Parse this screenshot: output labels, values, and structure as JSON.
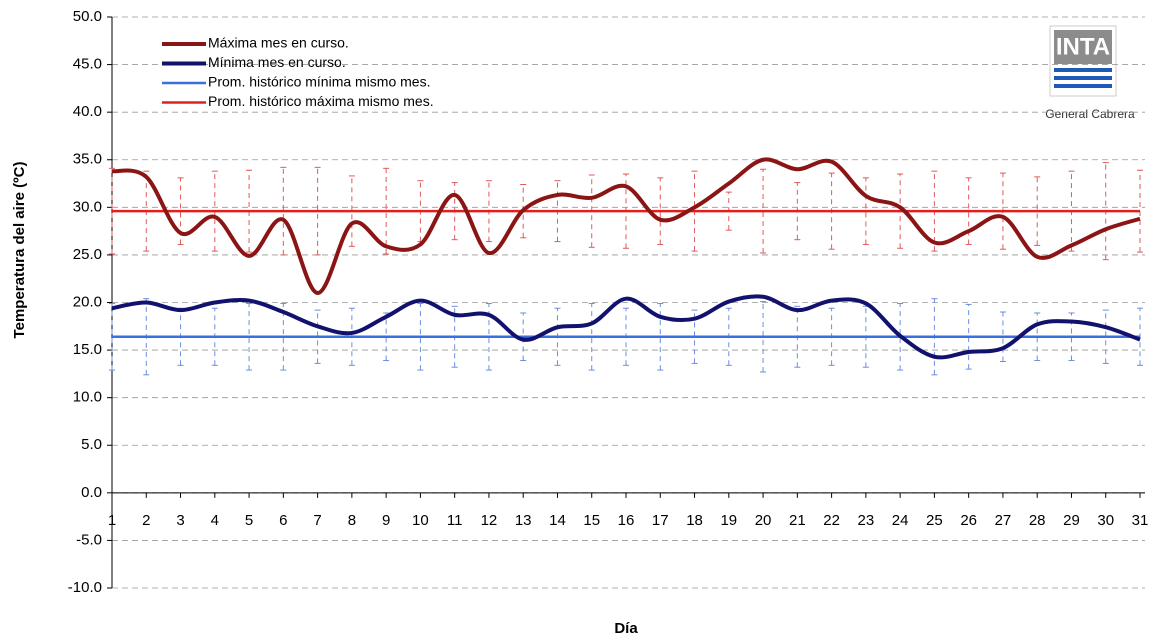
{
  "chart_data": {
    "type": "line",
    "y_label": "Temperatura del aire (ºC)",
    "x_label": "Día",
    "logo": {
      "title": "INTA",
      "subtitle": "General Cabrera"
    },
    "categories": [
      "1",
      "2",
      "3",
      "4",
      "5",
      "6",
      "7",
      "8",
      "9",
      "10",
      "11",
      "12",
      "13",
      "14",
      "15",
      "16",
      "17",
      "18",
      "19",
      "20",
      "21",
      "22",
      "23",
      "24",
      "25",
      "26",
      "27",
      "28",
      "29",
      "30",
      "31"
    ],
    "ylim": [
      -10,
      50
    ],
    "yticks": [
      {
        "value": -10,
        "label": "-10.0"
      },
      {
        "value": -5,
        "label": "-5.0"
      },
      {
        "value": 0,
        "label": "0.0"
      },
      {
        "value": 5,
        "label": "5.0"
      },
      {
        "value": 10,
        "label": "10.0"
      },
      {
        "value": 15,
        "label": "15.0"
      },
      {
        "value": 20,
        "label": "20.0"
      },
      {
        "value": 25,
        "label": "25.0"
      },
      {
        "value": 30,
        "label": "30.0"
      },
      {
        "value": 35,
        "label": "35.0"
      },
      {
        "value": 40,
        "label": "40.0"
      },
      {
        "value": 45,
        "label": "45.0"
      },
      {
        "value": 50,
        "label": "50.0"
      }
    ],
    "grid": true,
    "legend": "upper left",
    "series": [
      {
        "name": "Máxima mes en curso.",
        "color": "#8b1414",
        "smooth": true,
        "values": [
          33.8,
          33.2,
          27.3,
          29.0,
          24.9,
          28.7,
          21.0,
          28.3,
          25.9,
          26.1,
          31.3,
          25.2,
          29.7,
          31.3,
          31.0,
          32.2,
          28.7,
          30.0,
          32.5,
          35.0,
          34.0,
          34.8,
          31.2,
          30.0,
          26.3,
          27.5,
          29.0,
          24.8,
          26.0,
          27.7,
          28.8
        ]
      },
      {
        "name": "Mínima mes en curso.",
        "color": "#12126e",
        "smooth": true,
        "values": [
          19.4,
          20.0,
          19.2,
          20.0,
          20.2,
          19.0,
          17.5,
          16.8,
          18.5,
          20.2,
          18.7,
          18.7,
          16.1,
          17.4,
          17.8,
          20.4,
          18.5,
          18.3,
          20.1,
          20.6,
          19.2,
          20.2,
          19.9,
          16.5,
          14.3,
          14.8,
          15.2,
          17.7,
          18.0,
          17.4,
          16.1
        ]
      },
      {
        "name": "Prom. histórico mínima mismo mes.",
        "color": "#3a6fe0",
        "error_color": "#6a8fe0",
        "values": [
          16.4,
          16.4,
          16.4,
          16.4,
          16.4,
          16.4,
          16.4,
          16.4,
          16.4,
          16.4,
          16.4,
          16.4,
          16.4,
          16.4,
          16.4,
          16.4,
          16.4,
          16.4,
          16.4,
          16.4,
          16.4,
          16.4,
          16.4,
          16.4,
          16.4,
          16.4,
          16.4,
          16.4,
          16.4,
          16.4,
          16.4
        ],
        "errors": [
          3.5,
          4.0,
          3.0,
          3.0,
          3.5,
          3.5,
          2.8,
          3.0,
          2.5,
          3.5,
          3.2,
          3.5,
          2.5,
          3.0,
          3.5,
          3.0,
          3.5,
          2.8,
          3.0,
          3.7,
          3.2,
          3.0,
          3.2,
          3.5,
          4.0,
          3.4,
          2.6,
          2.5,
          2.5,
          2.8,
          3.0
        ]
      },
      {
        "name": "Prom. histórico máxima mismo mes.",
        "color": "#e0201e",
        "error_color": "#e05a5a",
        "values": [
          29.6,
          29.6,
          29.6,
          29.6,
          29.6,
          29.6,
          29.6,
          29.6,
          29.6,
          29.6,
          29.6,
          29.6,
          29.6,
          29.6,
          29.6,
          29.6,
          29.6,
          29.6,
          29.6,
          29.6,
          29.6,
          29.6,
          29.6,
          29.6,
          29.6,
          29.6,
          29.6,
          29.6,
          29.6,
          29.6,
          29.6
        ],
        "errors": [
          4.5,
          4.2,
          3.5,
          4.2,
          4.3,
          4.6,
          4.6,
          3.7,
          4.5,
          3.2,
          3.0,
          3.2,
          2.8,
          3.2,
          3.8,
          3.9,
          3.5,
          4.2,
          2.0,
          4.4,
          3.0,
          4.0,
          3.5,
          3.9,
          4.2,
          3.5,
          4.0,
          3.6,
          4.2,
          5.1,
          4.3
        ]
      }
    ]
  }
}
